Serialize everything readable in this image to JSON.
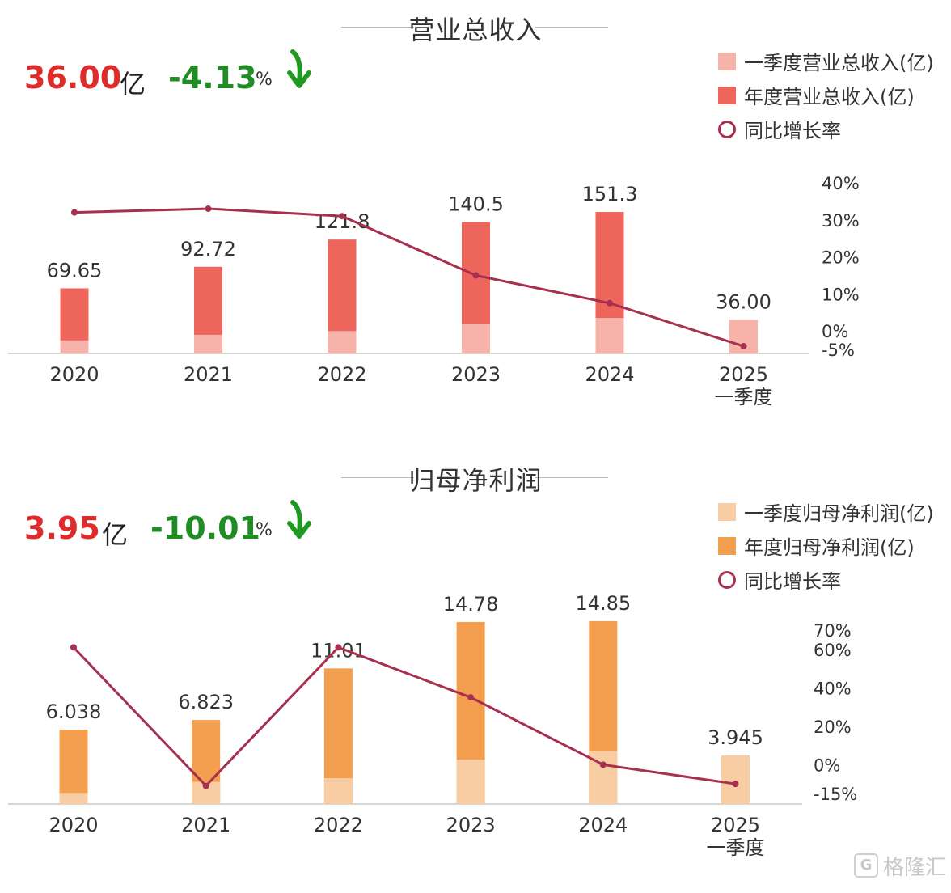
{
  "watermark": {
    "logo_glyph": "G",
    "text": "格隆汇"
  },
  "charts": {
    "revenue": {
      "title": "营业总收入",
      "kpi": {
        "value": "36.00",
        "unit": "亿",
        "change": "-4.13",
        "pct": "%"
      },
      "legend": {
        "q1_label": "一季度营业总收入(亿)",
        "annual_label": "年度营业总收入(亿)",
        "growth_label": "同比增长率"
      },
      "colors": {
        "q1": "#f7b3aa",
        "annual": "#ee665b",
        "line": "#a8304f"
      }
    },
    "profit": {
      "title": "归母净利润",
      "kpi": {
        "value": "3.95",
        "unit": "亿",
        "change": "-10.01",
        "pct": "%"
      },
      "legend": {
        "q1_label": "一季度归母净利润(亿)",
        "annual_label": "年度归母净利润(亿)",
        "growth_label": "同比增长率"
      },
      "colors": {
        "q1": "#f8cda4",
        "annual": "#f49f50",
        "line": "#a8304f"
      }
    }
  },
  "chart_data": [
    {
      "type": "bar",
      "title": "营业总收入",
      "categories": [
        "2020",
        "2021",
        "2022",
        "2023",
        "2024",
        "2025\n一季度"
      ],
      "series": [
        {
          "name": "年度营业总收入(亿)",
          "values": [
            69.65,
            92.72,
            121.8,
            140.5,
            151.3,
            null
          ]
        },
        {
          "name": "一季度营业总收入(亿)",
          "values": [
            14,
            20,
            24,
            32,
            38,
            36.0
          ]
        },
        {
          "name": "同比增长率",
          "type": "line",
          "values": [
            32,
            33,
            31,
            15,
            7.5,
            -4.13
          ]
        }
      ],
      "data_labels": [
        "69.65",
        "92.72",
        "121.8",
        "140.5",
        "151.3",
        "36.00"
      ],
      "y2_ticks": [
        "40%",
        "30%",
        "20%",
        "10%",
        "0%",
        "-5%"
      ],
      "y2_tick_values": [
        40,
        30,
        20,
        10,
        0,
        -5
      ],
      "ylim": [
        0,
        160
      ],
      "y2lim": [
        -5,
        40
      ],
      "grid": false,
      "legend_position": "top-right"
    },
    {
      "type": "bar",
      "title": "归母净利润",
      "categories": [
        "2020",
        "2021",
        "2022",
        "2023",
        "2024",
        "2025\n一季度"
      ],
      "series": [
        {
          "name": "年度归母净利润(亿)",
          "values": [
            6.038,
            6.823,
            11.01,
            14.78,
            14.85,
            null
          ]
        },
        {
          "name": "一季度归母净利润(亿)",
          "values": [
            0.9,
            1.8,
            2.1,
            3.6,
            4.3,
            3.945
          ]
        },
        {
          "name": "同比增长率",
          "type": "line",
          "values": [
            61,
            -11,
            61,
            35,
            0,
            -10.01
          ]
        }
      ],
      "data_labels": [
        "6.038",
        "6.823",
        "11.01",
        "14.78",
        "14.85",
        "3.945"
      ],
      "y2_ticks": [
        "70%",
        "60%",
        "40%",
        "20%",
        "0%",
        "-15%"
      ],
      "y2_tick_values": [
        70,
        60,
        40,
        20,
        0,
        -15
      ],
      "ylim": [
        0,
        15.5
      ],
      "y2lim": [
        -15,
        70
      ],
      "grid": false,
      "legend_position": "top-right"
    }
  ]
}
